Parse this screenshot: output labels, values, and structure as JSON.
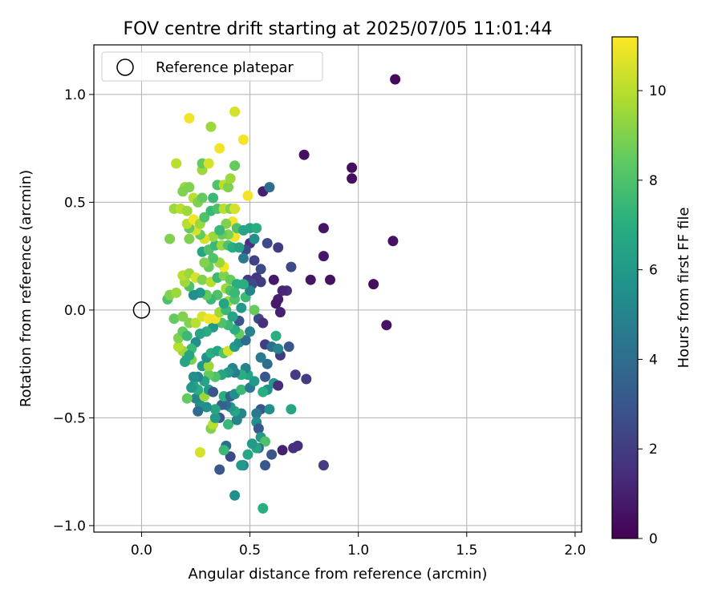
{
  "chart_data": {
    "type": "scatter",
    "title": "FOV centre drift starting at 2025/07/05 11:01:44",
    "xlabel": "Angular distance from reference (arcmin)",
    "ylabel": "Rotation from reference (arcmin)",
    "xlim": [
      -0.22,
      2.03
    ],
    "ylim": [
      -1.03,
      1.23
    ],
    "xticks": [
      0.0,
      0.5,
      1.0,
      1.5,
      2.0
    ],
    "xtick_labels": [
      "0.0",
      "0.5",
      "1.0",
      "1.5",
      "2.0"
    ],
    "yticks": [
      1.0,
      0.5,
      0.0,
      -0.5,
      -1.0
    ],
    "ytick_labels": [
      "1.0",
      "0.5",
      "0.0",
      "−0.5",
      "−1.0"
    ],
    "grid": true,
    "legend": {
      "position": "top-left",
      "entries": [
        "Reference platepar"
      ]
    },
    "reference_point": {
      "x": 0.0,
      "y": 0.0,
      "marker": "open-circle",
      "color": "#000000"
    },
    "colorbar": {
      "label": "Hours from first FF file",
      "colormap": "viridis",
      "range": [
        0,
        11.2
      ],
      "ticks": [
        0,
        2,
        4,
        6,
        8,
        10
      ],
      "tick_labels": [
        "0",
        "2",
        "4",
        "6",
        "8",
        "10"
      ]
    },
    "points": [
      [
        1.17,
        1.07,
        0.3
      ],
      [
        0.75,
        0.72,
        0.5
      ],
      [
        0.97,
        0.66,
        0.4
      ],
      [
        0.97,
        0.61,
        0.4
      ],
      [
        1.16,
        0.32,
        0.5
      ],
      [
        0.84,
        0.38,
        0.6
      ],
      [
        0.84,
        0.25,
        0.7
      ],
      [
        0.78,
        0.14,
        0.6
      ],
      [
        0.87,
        0.14,
        0.5
      ],
      [
        1.07,
        0.12,
        0.4
      ],
      [
        1.13,
        -0.07,
        0.5
      ],
      [
        0.56,
        0.55,
        1.0
      ],
      [
        0.59,
        0.57,
        4.0
      ],
      [
        0.84,
        -0.72,
        2.0
      ],
      [
        0.65,
        -0.65,
        1.0
      ],
      [
        0.7,
        -0.64,
        1.5
      ],
      [
        0.72,
        -0.63,
        1.5
      ],
      [
        0.76,
        -0.32,
        2.0
      ],
      [
        0.71,
        -0.3,
        2.0
      ],
      [
        0.69,
        0.2,
        2.5
      ],
      [
        0.63,
        0.29,
        2.0
      ],
      [
        0.67,
        0.09,
        1.5
      ],
      [
        0.65,
        0.09,
        1.2
      ],
      [
        0.63,
        0.05,
        1.0
      ],
      [
        0.62,
        0.03,
        0.8
      ],
      [
        0.64,
        -0.01,
        1.0
      ],
      [
        0.61,
        0.14,
        0.8
      ],
      [
        0.58,
        0.31,
        2.5
      ],
      [
        0.55,
        0.19,
        2.5
      ],
      [
        0.55,
        0.13,
        2.0
      ],
      [
        0.53,
        0.15,
        1.8
      ],
      [
        0.52,
        0.23,
        2.2
      ],
      [
        0.5,
        0.31,
        1.5
      ],
      [
        0.48,
        0.28,
        2.5
      ],
      [
        0.47,
        0.24,
        4.5
      ],
      [
        0.49,
        0.14,
        2.0
      ],
      [
        0.51,
        0.12,
        2.5
      ],
      [
        0.54,
        -0.04,
        2.5
      ],
      [
        0.56,
        -0.06,
        1.5
      ],
      [
        0.57,
        -0.16,
        2.0
      ],
      [
        0.6,
        -0.17,
        4.0
      ],
      [
        0.64,
        -0.21,
        2.0
      ],
      [
        0.68,
        -0.17,
        3.0
      ],
      [
        0.62,
        -0.12,
        7.0
      ],
      [
        0.63,
        -0.18,
        5.0
      ],
      [
        0.58,
        -0.25,
        4.0
      ],
      [
        0.55,
        -0.22,
        4.5
      ],
      [
        0.57,
        -0.31,
        3.0
      ],
      [
        0.61,
        -0.34,
        6.0
      ],
      [
        0.63,
        -0.35,
        1.5
      ],
      [
        0.58,
        -0.37,
        5.5
      ],
      [
        0.56,
        -0.38,
        7.0
      ],
      [
        0.55,
        -0.46,
        3.0
      ],
      [
        0.59,
        -0.46,
        5.5
      ],
      [
        0.69,
        -0.46,
        6.5
      ],
      [
        0.53,
        -0.48,
        4.5
      ],
      [
        0.53,
        -0.52,
        5.5
      ],
      [
        0.54,
        -0.55,
        3.0
      ],
      [
        0.55,
        -0.59,
        6.0
      ],
      [
        0.57,
        -0.61,
        8.0
      ],
      [
        0.54,
        -0.64,
        4.0
      ],
      [
        0.53,
        -0.64,
        6.5
      ],
      [
        0.51,
        -0.62,
        6.0
      ],
      [
        0.49,
        -0.67,
        6.5
      ],
      [
        0.47,
        -0.72,
        5.0
      ],
      [
        0.46,
        -0.72,
        6.0
      ],
      [
        0.57,
        -0.72,
        3.0
      ],
      [
        0.6,
        -0.67,
        3.0
      ],
      [
        0.56,
        -0.92,
        7.0
      ],
      [
        0.43,
        -0.86,
        5.5
      ],
      [
        0.41,
        -0.68,
        2.5
      ],
      [
        0.39,
        -0.63,
        4.0
      ],
      [
        0.38,
        -0.65,
        7.5
      ],
      [
        0.36,
        -0.74,
        3.0
      ],
      [
        0.27,
        -0.66,
        10.5
      ],
      [
        0.32,
        -0.55,
        9.0
      ],
      [
        0.33,
        -0.53,
        10.0
      ],
      [
        0.36,
        -0.5,
        3.0
      ],
      [
        0.34,
        -0.5,
        6.0
      ],
      [
        0.4,
        -0.53,
        7.5
      ],
      [
        0.44,
        -0.51,
        5.0
      ],
      [
        0.46,
        -0.48,
        5.0
      ],
      [
        0.43,
        -0.47,
        6.5
      ],
      [
        0.41,
        -0.45,
        6.0
      ],
      [
        0.39,
        -0.44,
        4.0
      ],
      [
        0.37,
        -0.44,
        3.5
      ],
      [
        0.34,
        -0.46,
        6.5
      ],
      [
        0.3,
        -0.45,
        5.5
      ],
      [
        0.27,
        -0.44,
        5.5
      ],
      [
        0.26,
        -0.47,
        4.0
      ],
      [
        0.25,
        -0.41,
        5.0
      ],
      [
        0.21,
        -0.41,
        8.5
      ],
      [
        0.29,
        -0.4,
        9.5
      ],
      [
        0.31,
        -0.37,
        6.0
      ],
      [
        0.33,
        -0.38,
        3.0
      ],
      [
        0.38,
        -0.4,
        7.0
      ],
      [
        0.41,
        -0.4,
        3.5
      ],
      [
        0.43,
        -0.39,
        5.5
      ],
      [
        0.46,
        -0.37,
        7.5
      ],
      [
        0.5,
        -0.36,
        4.5
      ],
      [
        0.52,
        -0.33,
        6.0
      ],
      [
        0.49,
        -0.3,
        6.5
      ],
      [
        0.48,
        -0.27,
        5.0
      ],
      [
        0.46,
        -0.3,
        7.0
      ],
      [
        0.43,
        -0.29,
        4.5
      ],
      [
        0.42,
        -0.27,
        5.0
      ],
      [
        0.4,
        -0.29,
        6.0
      ],
      [
        0.37,
        -0.3,
        6.5
      ],
      [
        0.34,
        -0.31,
        8.0
      ],
      [
        0.31,
        -0.3,
        8.5
      ],
      [
        0.29,
        -0.33,
        6.5
      ],
      [
        0.26,
        -0.31,
        5.0
      ],
      [
        0.26,
        -0.37,
        7.0
      ],
      [
        0.24,
        -0.35,
        6.5
      ],
      [
        0.28,
        -0.26,
        6.0
      ],
      [
        0.31,
        -0.26,
        9.5
      ],
      [
        0.3,
        -0.22,
        5.5
      ],
      [
        0.32,
        -0.2,
        7.0
      ],
      [
        0.35,
        -0.19,
        6.5
      ],
      [
        0.38,
        -0.2,
        8.0
      ],
      [
        0.4,
        -0.19,
        10.5
      ],
      [
        0.43,
        -0.17,
        6.0
      ],
      [
        0.45,
        -0.15,
        5.5
      ],
      [
        0.48,
        -0.14,
        4.0
      ],
      [
        0.5,
        -0.1,
        5.0
      ],
      [
        0.45,
        -0.11,
        8.5
      ],
      [
        0.43,
        -0.09,
        7.0
      ],
      [
        0.4,
        -0.07,
        7.5
      ],
      [
        0.37,
        -0.06,
        8.0
      ],
      [
        0.33,
        -0.08,
        6.0
      ],
      [
        0.3,
        -0.1,
        7.0
      ],
      [
        0.27,
        -0.11,
        6.5
      ],
      [
        0.25,
        -0.15,
        5.5
      ],
      [
        0.23,
        -0.18,
        7.5
      ],
      [
        0.21,
        -0.21,
        5.5
      ],
      [
        0.23,
        -0.23,
        9.0
      ],
      [
        0.2,
        -0.24,
        6.5
      ],
      [
        0.19,
        -0.19,
        9.5
      ],
      [
        0.17,
        -0.17,
        10.0
      ],
      [
        0.17,
        -0.13,
        9.0
      ],
      [
        0.19,
        -0.1,
        8.5
      ],
      [
        0.21,
        -0.12,
        7.5
      ],
      [
        0.22,
        -0.06,
        9.0
      ],
      [
        0.25,
        -0.06,
        10.0
      ],
      [
        0.28,
        -0.03,
        10.5
      ],
      [
        0.31,
        -0.04,
        11.0
      ],
      [
        0.34,
        -0.04,
        11.0
      ],
      [
        0.36,
        -0.01,
        9.5
      ],
      [
        0.39,
        0.0,
        7.5
      ],
      [
        0.4,
        0.04,
        9.5
      ],
      [
        0.43,
        0.05,
        8.0
      ],
      [
        0.46,
        0.01,
        6.0
      ],
      [
        0.48,
        0.06,
        7.5
      ],
      [
        0.5,
        0.09,
        5.0
      ],
      [
        0.52,
        0.0,
        8.5
      ],
      [
        0.45,
        -0.05,
        3.0
      ],
      [
        0.42,
        -0.03,
        6.5
      ],
      [
        0.38,
        0.03,
        6.5
      ],
      [
        0.35,
        0.07,
        8.0
      ],
      [
        0.32,
        0.05,
        7.5
      ],
      [
        0.3,
        0.07,
        8.5
      ],
      [
        0.27,
        0.08,
        6.0
      ],
      [
        0.24,
        0.07,
        5.5
      ],
      [
        0.22,
        0.11,
        8.0
      ],
      [
        0.2,
        0.13,
        9.5
      ],
      [
        0.19,
        0.16,
        10.0
      ],
      [
        0.22,
        0.17,
        9.5
      ],
      [
        0.25,
        0.15,
        10.5
      ],
      [
        0.28,
        0.14,
        9.0
      ],
      [
        0.32,
        0.13,
        10.0
      ],
      [
        0.35,
        0.15,
        7.5
      ],
      [
        0.38,
        0.16,
        9.0
      ],
      [
        0.41,
        0.14,
        8.5
      ],
      [
        0.44,
        0.12,
        7.0
      ],
      [
        0.47,
        0.12,
        7.0
      ],
      [
        0.39,
        0.1,
        9.5
      ],
      [
        0.41,
        0.09,
        8.0
      ],
      [
        0.43,
        0.08,
        7.5
      ],
      [
        0.38,
        0.2,
        11.0
      ],
      [
        0.36,
        0.22,
        9.5
      ],
      [
        0.33,
        0.24,
        8.0
      ],
      [
        0.31,
        0.2,
        8.5
      ],
      [
        0.29,
        0.22,
        9.0
      ],
      [
        0.28,
        0.27,
        6.5
      ],
      [
        0.31,
        0.28,
        8.0
      ],
      [
        0.34,
        0.3,
        7.5
      ],
      [
        0.37,
        0.3,
        9.5
      ],
      [
        0.4,
        0.3,
        8.0
      ],
      [
        0.42,
        0.29,
        7.0
      ],
      [
        0.45,
        0.29,
        6.5
      ],
      [
        0.43,
        0.34,
        11.0
      ],
      [
        0.4,
        0.35,
        9.0
      ],
      [
        0.37,
        0.35,
        8.5
      ],
      [
        0.33,
        0.34,
        9.5
      ],
      [
        0.29,
        0.33,
        10.5
      ],
      [
        0.27,
        0.35,
        8.5
      ],
      [
        0.25,
        0.37,
        10.5
      ],
      [
        0.22,
        0.33,
        9.0
      ],
      [
        0.22,
        0.38,
        8.5
      ],
      [
        0.21,
        0.4,
        10.0
      ],
      [
        0.24,
        0.42,
        11.0
      ],
      [
        0.27,
        0.4,
        9.5
      ],
      [
        0.29,
        0.43,
        8.0
      ],
      [
        0.32,
        0.46,
        7.5
      ],
      [
        0.35,
        0.47,
        8.0
      ],
      [
        0.38,
        0.47,
        10.0
      ],
      [
        0.41,
        0.47,
        9.0
      ],
      [
        0.43,
        0.47,
        10.5
      ],
      [
        0.42,
        0.41,
        11.0
      ],
      [
        0.39,
        0.4,
        9.0
      ],
      [
        0.36,
        0.37,
        7.5
      ],
      [
        0.44,
        0.38,
        8.0
      ],
      [
        0.47,
        0.37,
        6.5
      ],
      [
        0.5,
        0.38,
        6.5
      ],
      [
        0.53,
        0.38,
        7.0
      ],
      [
        0.52,
        0.33,
        5.5
      ],
      [
        0.15,
        0.47,
        9.5
      ],
      [
        0.18,
        0.47,
        10.0
      ],
      [
        0.21,
        0.46,
        9.5
      ],
      [
        0.24,
        0.52,
        10.0
      ],
      [
        0.26,
        0.5,
        9.0
      ],
      [
        0.28,
        0.52,
        8.5
      ],
      [
        0.33,
        0.52,
        7.5
      ],
      [
        0.35,
        0.58,
        8.0
      ],
      [
        0.38,
        0.58,
        10.0
      ],
      [
        0.4,
        0.57,
        9.0
      ],
      [
        0.41,
        0.61,
        9.5
      ],
      [
        0.43,
        0.67,
        8.5
      ],
      [
        0.49,
        0.53,
        11.0
      ],
      [
        0.2,
        0.57,
        9.5
      ],
      [
        0.22,
        0.57,
        9.0
      ],
      [
        0.19,
        0.55,
        9.0
      ],
      [
        0.28,
        0.65,
        9.5
      ],
      [
        0.28,
        0.68,
        8.5
      ],
      [
        0.16,
        0.68,
        10.0
      ],
      [
        0.31,
        0.68,
        10.5
      ],
      [
        0.36,
        0.75,
        11.0
      ],
      [
        0.47,
        0.79,
        11.0
      ],
      [
        0.43,
        0.92,
        10.5
      ],
      [
        0.22,
        0.89,
        11.0
      ],
      [
        0.32,
        0.85,
        9.5
      ],
      [
        0.13,
        0.33,
        9.0
      ],
      [
        0.12,
        0.05,
        8.0
      ],
      [
        0.13,
        0.07,
        9.0
      ],
      [
        0.16,
        0.08,
        9.5
      ],
      [
        0.15,
        -0.04,
        8.5
      ],
      [
        0.19,
        -0.03,
        9.0
      ],
      [
        0.22,
        -0.21,
        6.5
      ],
      [
        0.24,
        -0.31,
        5.5
      ],
      [
        0.23,
        -0.36,
        6.0
      ]
    ]
  }
}
